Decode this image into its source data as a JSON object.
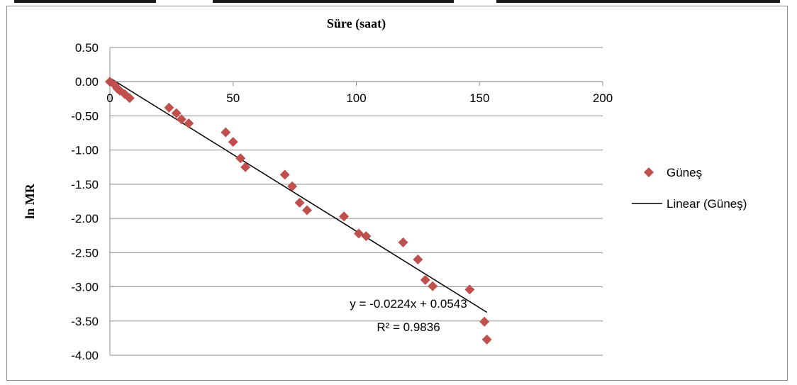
{
  "chart_data": {
    "type": "scatter",
    "xlabel": "Süre (saat)",
    "ylabel": "ln MR",
    "xlim": [
      0,
      200
    ],
    "ylim": [
      -4.0,
      0.5
    ],
    "x_ticks": [
      0,
      50,
      100,
      150,
      200
    ],
    "y_ticks": [
      0.5,
      0.0,
      -0.5,
      -1.0,
      -1.5,
      -2.0,
      -2.5,
      -3.0,
      -3.5,
      -4.0
    ],
    "x_tick_labels": [
      "0",
      "50",
      "100",
      "150",
      "200"
    ],
    "y_tick_labels": [
      "0.50",
      "0.00",
      "-0.50",
      "-1.00",
      "-1.50",
      "-2.00",
      "-2.50",
      "-3.00",
      "-3.50",
      "-4.00"
    ],
    "grid": "horizontal",
    "legend_position": "right",
    "series": [
      {
        "name": "Güneş",
        "marker": "diamond",
        "color": "#c0504d",
        "x": [
          0,
          2,
          3,
          4,
          6,
          8,
          24,
          27,
          29,
          32,
          47,
          50,
          53,
          55,
          71,
          74,
          77,
          80,
          95,
          101,
          104,
          119,
          125,
          128,
          131,
          146,
          152,
          153
        ],
        "y": [
          0.0,
          -0.05,
          -0.1,
          -0.13,
          -0.18,
          -0.24,
          -0.38,
          -0.46,
          -0.55,
          -0.61,
          -0.74,
          -0.88,
          -1.12,
          -1.25,
          -1.36,
          -1.53,
          -1.77,
          -1.88,
          -1.97,
          -2.22,
          -2.26,
          -2.35,
          -2.6,
          -2.9,
          -2.99,
          -3.04,
          -3.51,
          -3.77
        ]
      },
      {
        "name": "Linear (Güneş)",
        "type": "line",
        "color": "#000000",
        "slope": -0.0224,
        "intercept": 0.0543,
        "x_range": [
          0,
          153
        ]
      }
    ],
    "annotations": {
      "equation": "y = -0.0224x + 0.0543",
      "r_squared": "R² = 0.9836"
    }
  }
}
